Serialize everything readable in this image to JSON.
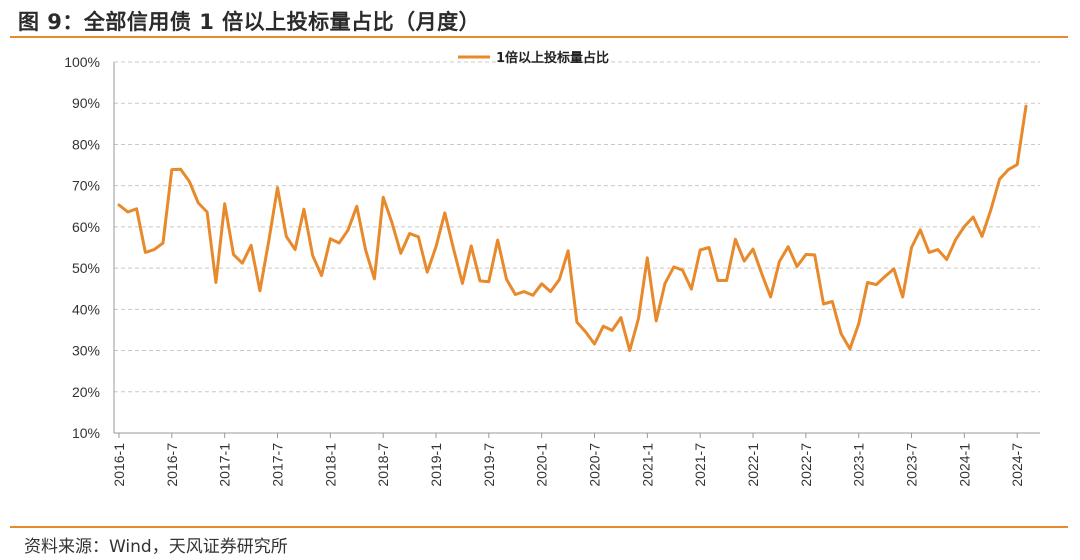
{
  "title": "图 9：全部信用债 1 倍以上投标量占比（月度）",
  "source": "资料来源：Wind，天风证券研究所",
  "accent_color": "#e8892b",
  "chart_data": {
    "type": "line",
    "ylim": [
      10,
      100
    ],
    "yticks": [
      10,
      20,
      30,
      40,
      50,
      60,
      70,
      80,
      90,
      100
    ],
    "y_tick_suffix": "%",
    "grid": "horizontal-dashed",
    "legend_position": "top-center",
    "x_tick_labels": [
      "2016-1",
      "2016-7",
      "2017-1",
      "2017-7",
      "2018-1",
      "2018-7",
      "2019-1",
      "2019-7",
      "2020-1",
      "2020-7",
      "2021-1",
      "2021-7",
      "2022-1",
      "2022-7",
      "2023-1",
      "2023-7",
      "2024-1",
      "2024-7"
    ],
    "x": [
      "2016-1",
      "2016-2",
      "2016-3",
      "2016-4",
      "2016-5",
      "2016-6",
      "2016-7",
      "2016-8",
      "2016-9",
      "2016-10",
      "2016-11",
      "2016-12",
      "2017-1",
      "2017-2",
      "2017-3",
      "2017-4",
      "2017-5",
      "2017-6",
      "2017-7",
      "2017-8",
      "2017-9",
      "2017-10",
      "2017-11",
      "2017-12",
      "2018-1",
      "2018-2",
      "2018-3",
      "2018-4",
      "2018-5",
      "2018-6",
      "2018-7",
      "2018-8",
      "2018-9",
      "2018-10",
      "2018-11",
      "2018-12",
      "2019-1",
      "2019-2",
      "2019-3",
      "2019-4",
      "2019-5",
      "2019-6",
      "2019-7",
      "2019-8",
      "2019-9",
      "2019-10",
      "2019-11",
      "2019-12",
      "2020-1",
      "2020-2",
      "2020-3",
      "2020-4",
      "2020-5",
      "2020-6",
      "2020-7",
      "2020-8",
      "2020-9",
      "2020-10",
      "2020-11",
      "2020-12",
      "2021-1",
      "2021-2",
      "2021-3",
      "2021-4",
      "2021-5",
      "2021-6",
      "2021-7",
      "2021-8",
      "2021-9",
      "2021-10",
      "2021-11",
      "2021-12",
      "2022-1",
      "2022-2",
      "2022-3",
      "2022-4",
      "2022-5",
      "2022-6",
      "2022-7",
      "2022-8",
      "2022-9",
      "2022-10",
      "2022-11",
      "2022-12",
      "2023-1",
      "2023-2",
      "2023-3",
      "2023-4",
      "2023-5",
      "2023-6",
      "2023-7",
      "2023-8",
      "2023-9",
      "2023-10",
      "2023-11",
      "2023-12",
      "2024-1",
      "2024-2",
      "2024-3",
      "2024-4",
      "2024-5",
      "2024-6",
      "2024-7",
      "2024-8"
    ],
    "series": [
      {
        "name": "1倍以上投标量占比",
        "color": "#e8892b",
        "values": [
          65.3,
          63.6,
          64.4,
          53.8,
          54.5,
          56.1,
          73.9,
          74.0,
          71.0,
          65.8,
          63.6,
          46.5,
          65.6,
          53.3,
          51.2,
          55.5,
          44.5,
          56.5,
          69.5,
          57.7,
          54.5,
          64.3,
          53.0,
          48.2,
          57.1,
          56.1,
          59.2,
          65.0,
          54.4,
          47.4,
          67.2,
          61.0,
          53.6,
          58.4,
          57.6,
          49.0,
          55.2,
          63.4,
          54.6,
          46.3,
          55.4,
          46.9,
          46.7,
          56.8,
          47.3,
          43.6,
          44.3,
          43.4,
          46.2,
          44.3,
          47.2,
          54.2,
          36.9,
          34.5,
          31.6,
          35.9,
          34.9,
          38.0,
          30.0,
          37.8,
          52.5,
          37.2,
          46.3,
          50.3,
          49.5,
          44.9,
          54.4,
          55.0,
          47.0,
          47.0,
          57.0,
          51.7,
          54.6,
          48.6,
          43.0,
          51.6,
          55.2,
          50.4,
          53.3,
          53.2,
          41.3,
          41.9,
          34.1,
          30.4,
          36.5,
          46.5,
          46.0,
          48.0,
          49.8,
          43.0,
          55.0,
          59.3,
          53.8,
          54.5,
          52.1,
          56.9,
          60.1,
          62.4,
          57.7,
          64.1,
          71.6,
          73.9,
          75.1,
          89.3
        ]
      }
    ]
  }
}
